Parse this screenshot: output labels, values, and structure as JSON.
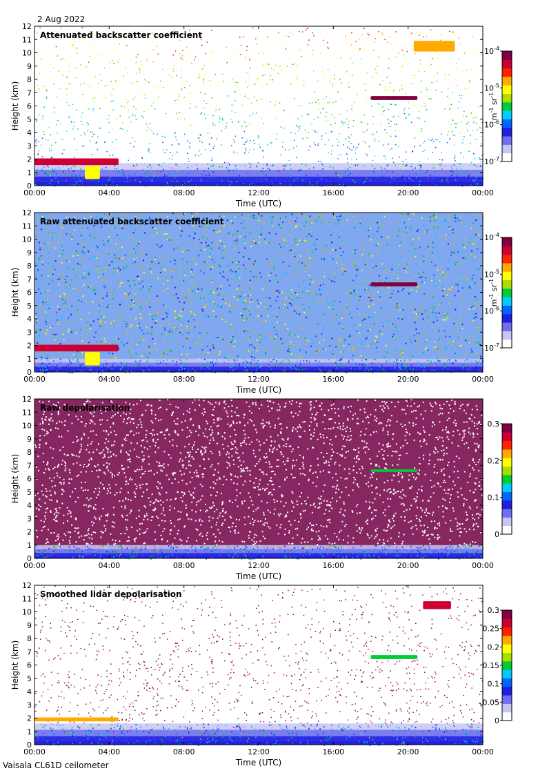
{
  "date_label": "2 Aug 2022",
  "footer_label": "Vaisala CL61D ceilometer",
  "colors": {
    "rainbow": [
      "#ffffff",
      "#c6c6f5",
      "#6f6ff0",
      "#1f1fe0",
      "#0066ff",
      "#00ccff",
      "#00cc33",
      "#aadd00",
      "#ffff00",
      "#ffaa00",
      "#ff2200",
      "#cc0033",
      "#800040"
    ],
    "frame": "#000000"
  },
  "chart_data": [
    {
      "type": "heatmap",
      "title": "Attenuated backscatter coefficient",
      "xlabel": "Time (UTC)",
      "ylabel": "Height (km)",
      "x_ticks": [
        "00:00",
        "04:00",
        "08:00",
        "12:00",
        "16:00",
        "20:00",
        "00:00"
      ],
      "xlim_hours": [
        0,
        24
      ],
      "ylim": [
        0,
        12
      ],
      "y_ticks": [
        "0",
        "1",
        "2",
        "3",
        "4",
        "5",
        "6",
        "7",
        "8",
        "9",
        "10",
        "11",
        "12"
      ],
      "colorbar": {
        "scale": "log",
        "units_text": "m",
        "units_sup1": "-1",
        "units_mid": " sr",
        "units_sup2": "-1",
        "tick_labels": [
          {
            "base": "10",
            "exp": "-7"
          },
          {
            "base": "10",
            "exp": "-6"
          },
          {
            "base": "10",
            "exp": "-5"
          },
          {
            "base": "10",
            "exp": "-4"
          }
        ]
      },
      "background_noise": "sparse",
      "boundary_layer_top_km": 1.7,
      "features": [
        {
          "kind": "cloud",
          "start_h": 18.0,
          "end_h": 20.5,
          "height_km": 6.6,
          "thickness_km": 0.3,
          "value": 0.95
        },
        {
          "kind": "cloud",
          "start_h": 20.3,
          "end_h": 22.5,
          "height_km": 10.5,
          "thickness_km": 0.8,
          "value": 0.75
        },
        {
          "kind": "cloud",
          "start_h": 0.0,
          "end_h": 4.5,
          "height_km": 1.8,
          "thickness_km": 0.5,
          "value": 0.9
        },
        {
          "kind": "aerosol",
          "start_h": 2.7,
          "end_h": 3.5,
          "height_km": 1.0,
          "thickness_km": 1.0,
          "value": 0.65
        }
      ]
    },
    {
      "type": "heatmap",
      "title": "Raw attenuated backscatter coefficient",
      "xlabel": "Time (UTC)",
      "ylabel": "Height (km)",
      "x_ticks": [
        "00:00",
        "04:00",
        "08:00",
        "12:00",
        "16:00",
        "20:00",
        "00:00"
      ],
      "xlim_hours": [
        0,
        24
      ],
      "ylim": [
        0,
        12
      ],
      "y_ticks": [
        "0",
        "1",
        "2",
        "3",
        "4",
        "5",
        "6",
        "7",
        "8",
        "9",
        "10",
        "11",
        "12"
      ],
      "colorbar": {
        "scale": "log",
        "units_text": "m",
        "units_sup1": "-1",
        "units_mid": " sr",
        "units_sup2": "-1",
        "tick_labels": [
          {
            "base": "10",
            "exp": "-7"
          },
          {
            "base": "10",
            "exp": "-6"
          },
          {
            "base": "10",
            "exp": "-5"
          },
          {
            "base": "10",
            "exp": "-4"
          }
        ]
      },
      "background_noise": "dense",
      "boundary_layer_top_km": 1.0,
      "features": [
        {
          "kind": "cloud",
          "start_h": 18.0,
          "end_h": 20.5,
          "height_km": 6.6,
          "thickness_km": 0.3,
          "value": 0.95
        },
        {
          "kind": "cloud",
          "start_h": 0.0,
          "end_h": 4.5,
          "height_km": 1.8,
          "thickness_km": 0.5,
          "value": 0.9
        },
        {
          "kind": "aerosol",
          "start_h": 2.7,
          "end_h": 3.5,
          "height_km": 1.0,
          "thickness_km": 1.0,
          "value": 0.65
        }
      ]
    },
    {
      "type": "heatmap",
      "title": "Raw depolarisation",
      "xlabel": "Time (UTC)",
      "ylabel": "Height (km)",
      "x_ticks": [
        "00:00",
        "04:00",
        "08:00",
        "12:00",
        "16:00",
        "20:00",
        "00:00"
      ],
      "xlim_hours": [
        0,
        24
      ],
      "ylim": [
        0,
        12
      ],
      "y_ticks": [
        "0",
        "1",
        "2",
        "3",
        "4",
        "5",
        "6",
        "7",
        "8",
        "9",
        "10",
        "11",
        "12"
      ],
      "colorbar": {
        "scale": "linear",
        "range": [
          0,
          0.3
        ],
        "tick_labels": [
          "0",
          "0.1",
          "0.2",
          "0.3"
        ]
      },
      "background_noise": "saturated",
      "boundary_layer_top_km": 1.0,
      "features": [
        {
          "kind": "cloud",
          "start_h": 18.0,
          "end_h": 20.5,
          "height_km": 6.6,
          "thickness_km": 0.2,
          "value": 0.5
        }
      ]
    },
    {
      "type": "heatmap",
      "title": "Smoothed lidar depolarisation",
      "xlabel": "Time (UTC)",
      "ylabel": "Height (km)",
      "x_ticks": [
        "00:00",
        "04:00",
        "08:00",
        "12:00",
        "16:00",
        "20:00",
        "00:00"
      ],
      "xlim_hours": [
        0,
        24
      ],
      "ylim": [
        0,
        12
      ],
      "y_ticks": [
        "0",
        "1",
        "2",
        "3",
        "4",
        "5",
        "6",
        "7",
        "8",
        "9",
        "10",
        "11",
        "12"
      ],
      "colorbar": {
        "scale": "linear",
        "range": [
          0,
          0.3
        ],
        "tick_labels": [
          "0",
          "0.05",
          "0.1",
          "0.15",
          "0.2",
          "0.25",
          "0.3"
        ]
      },
      "background_noise": "sparse-purple",
      "boundary_layer_top_km": 1.6,
      "features": [
        {
          "kind": "cloud",
          "start_h": 18.0,
          "end_h": 20.5,
          "height_km": 6.6,
          "thickness_km": 0.3,
          "value": 0.5
        },
        {
          "kind": "cloud",
          "start_h": 20.8,
          "end_h": 22.3,
          "height_km": 10.5,
          "thickness_km": 0.6,
          "value": 0.9
        },
        {
          "kind": "cloud",
          "start_h": 0.0,
          "end_h": 4.5,
          "height_km": 1.9,
          "thickness_km": 0.3,
          "value": 0.7
        }
      ]
    }
  ]
}
